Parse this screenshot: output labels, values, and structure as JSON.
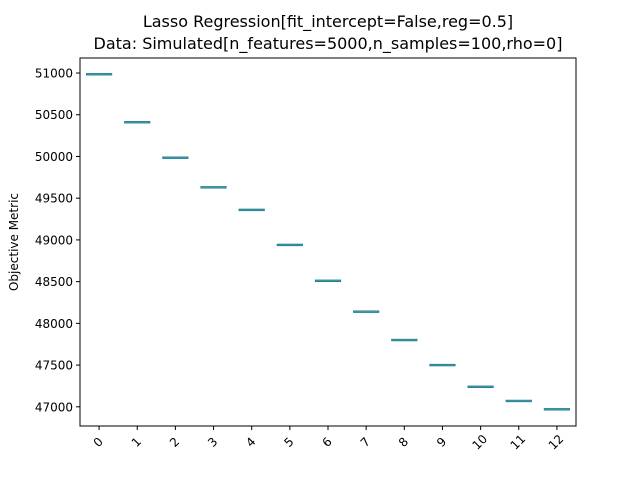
{
  "chart_data": {
    "type": "box",
    "title_line1": "Lasso Regression[fit_intercept=False,reg=0.5]",
    "title_line2": "Data: Simulated[n_features=5000,n_samples=100,rho=0]",
    "xlabel": "",
    "ylabel": "Objective Metric",
    "categories": [
      "0",
      "1",
      "2",
      "3",
      "4",
      "5",
      "6",
      "7",
      "8",
      "9",
      "10",
      "11",
      "12"
    ],
    "values": [
      50985,
      50410,
      49985,
      49630,
      49360,
      48940,
      48510,
      48140,
      47800,
      47500,
      47240,
      47070,
      46970
    ],
    "yticks": [
      47000,
      47500,
      48000,
      48500,
      49000,
      49500,
      50000,
      50500,
      51000
    ],
    "ylim": [
      46770,
      51180
    ],
    "grid": false,
    "box_color": "#1f77b4",
    "median_color": "#2ca02c"
  }
}
